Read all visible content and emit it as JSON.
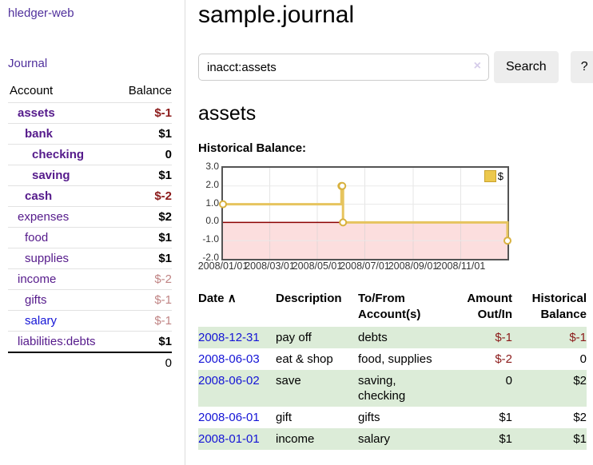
{
  "colors": {
    "accent_purple": "#551a8b",
    "brand_purple": "#50309c",
    "link_blue": "#1414d6",
    "negative_red": "#8b1a1a",
    "dim_negative": "#c08484",
    "stripe_green": "#dcecd8",
    "chart_line_gold": "#e6c45e",
    "chart_negative_pink": "#fcdede",
    "chart_zero_red": "#8b0000",
    "chart_border_gray": "#545454"
  },
  "sidebar": {
    "brand": "hledger-web",
    "journal_label": "Journal",
    "accounts_header": {
      "account": "Account",
      "balance": "Balance"
    },
    "accounts": [
      {
        "name": "assets",
        "level": 0,
        "strong": true,
        "balance": "$-1",
        "neg": "strong"
      },
      {
        "name": "bank",
        "level": 1,
        "strong": true,
        "balance": "$1",
        "neg": null
      },
      {
        "name": "checking",
        "level": 2,
        "strong": true,
        "balance": "0",
        "neg": null
      },
      {
        "name": "saving",
        "level": 2,
        "strong": true,
        "balance": "$1",
        "neg": null
      },
      {
        "name": "cash",
        "level": 1,
        "strong": true,
        "balance": "$-2",
        "neg": "strong"
      },
      {
        "name": "expenses",
        "level": 0,
        "strong": false,
        "balance": "$2",
        "neg": null
      },
      {
        "name": "food",
        "level": 1,
        "strong": false,
        "balance": "$1",
        "neg": null
      },
      {
        "name": "supplies",
        "level": 1,
        "strong": false,
        "balance": "$1",
        "neg": null
      },
      {
        "name": "income",
        "level": 0,
        "strong": false,
        "balance": "$-2",
        "neg": "dim"
      },
      {
        "name": "gifts",
        "level": 1,
        "strong": false,
        "balance": "$-1",
        "neg": "dim"
      },
      {
        "name": "salary",
        "level": 1,
        "strong": false,
        "balance": "$-1",
        "neg": "dim",
        "link": "blue"
      },
      {
        "name": "liabilities:debts",
        "level": 0,
        "strong": false,
        "balance": "$1",
        "neg": null
      }
    ],
    "total": "0"
  },
  "main": {
    "title": "sample.journal",
    "search": {
      "value": "inacct:assets",
      "clear_icon": "×",
      "button_label": "Search",
      "help_label": "?"
    },
    "heading": "assets"
  },
  "chart_data": {
    "type": "line",
    "step": true,
    "title": "Historical Balance:",
    "legend_label": "$",
    "series": [
      {
        "name": "$",
        "x": [
          "2008-01-01",
          "2008-06-01",
          "2008-06-02",
          "2008-06-03",
          "2008-12-31"
        ],
        "values": [
          1,
          2,
          2,
          0,
          -1
        ]
      }
    ],
    "ylim": [
      -2,
      3
    ],
    "yticks": [
      "3.0",
      "2.0",
      "1.0",
      "0.0",
      "-1.0",
      "-2.0"
    ],
    "xticks": [
      "2008/01/01",
      "2008/03/01",
      "2008/05/01",
      "2008/07/01",
      "2008/09/01",
      "2008/11/01"
    ],
    "negative_region_shaded": true,
    "grid": true,
    "legend_position": "top-right"
  },
  "transactions": {
    "headers": {
      "date": "Date",
      "sort_icon": "∧",
      "description": "Description",
      "tofrom": "To/From\nAccount(s)",
      "amount": "Amount\nOut/In",
      "balance": "Historical\nBalance"
    },
    "rows": [
      {
        "date": "2008-12-31",
        "description": "pay off",
        "tofrom": "debts",
        "amount": "$-1",
        "amount_neg": true,
        "balance": "$-1",
        "balance_neg": true
      },
      {
        "date": "2008-06-03",
        "description": "eat & shop",
        "tofrom": "food, supplies",
        "amount": "$-2",
        "amount_neg": true,
        "balance": "0",
        "balance_neg": false
      },
      {
        "date": "2008-06-02",
        "description": "save",
        "tofrom": "saving, checking",
        "amount": "0",
        "amount_neg": false,
        "balance": "$2",
        "balance_neg": false
      },
      {
        "date": "2008-06-01",
        "description": "gift",
        "tofrom": "gifts",
        "amount": "$1",
        "amount_neg": false,
        "balance": "$2",
        "balance_neg": false
      },
      {
        "date": "2008-01-01",
        "description": "income",
        "tofrom": "salary",
        "amount": "$1",
        "amount_neg": false,
        "balance": "$1",
        "balance_neg": false
      }
    ]
  }
}
